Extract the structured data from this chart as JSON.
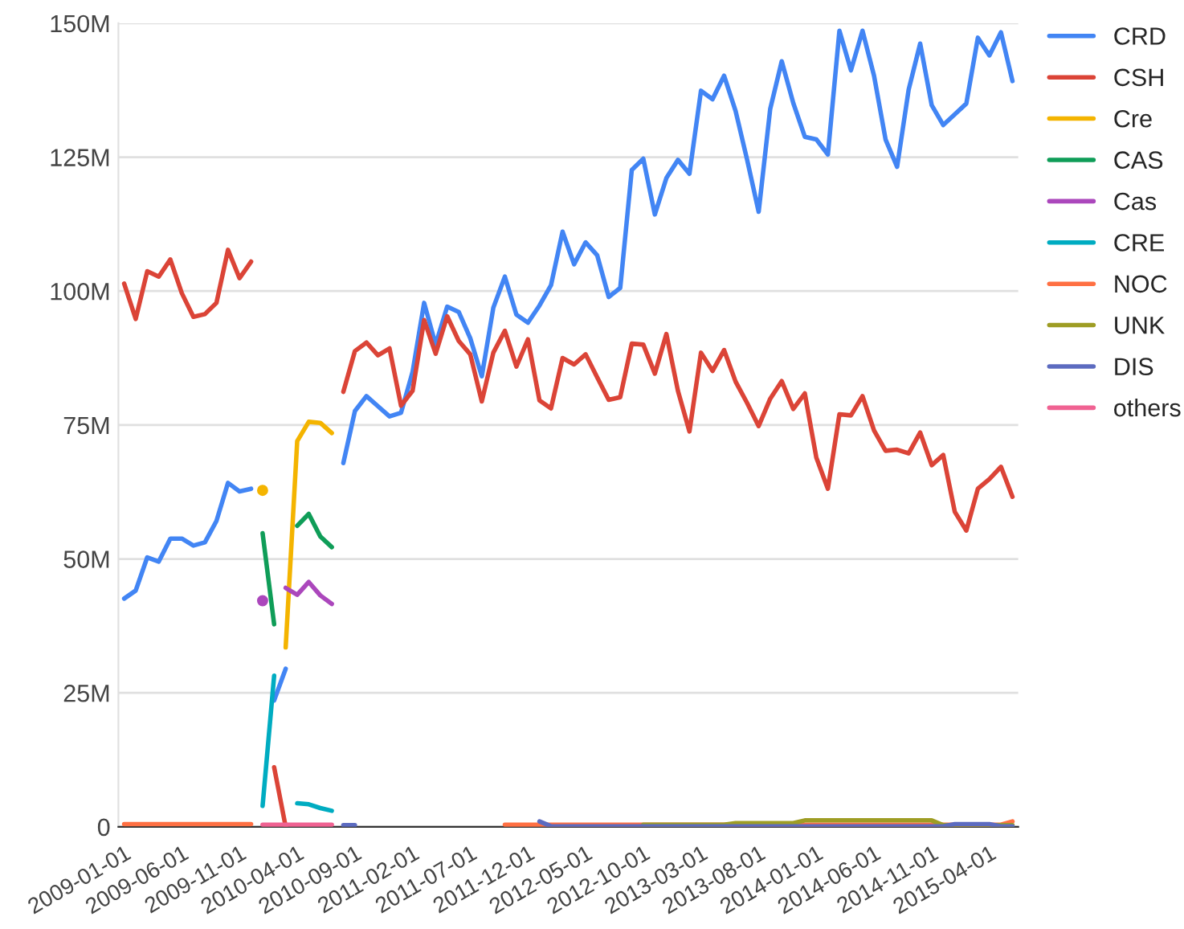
{
  "chart_data": {
    "type": "line",
    "categories": [
      "2009-01-01",
      null,
      null,
      null,
      null,
      "2009-06-01",
      null,
      null,
      null,
      null,
      "2009-11-01",
      null,
      null,
      null,
      null,
      "2010-04-01",
      null,
      null,
      null,
      null,
      "2010-09-01",
      null,
      null,
      null,
      null,
      "2011-02-01",
      null,
      null,
      null,
      null,
      "2011-07-01",
      null,
      null,
      null,
      null,
      "2011-12-01",
      null,
      null,
      null,
      null,
      "2012-05-01",
      null,
      null,
      null,
      null,
      "2012-10-01",
      null,
      null,
      null,
      null,
      "2013-03-01",
      null,
      null,
      null,
      null,
      "2013-08-01",
      null,
      null,
      null,
      null,
      "2014-01-01",
      null,
      null,
      null,
      null,
      "2014-06-01",
      null,
      null,
      null,
      null,
      "2014-11-01",
      null,
      null,
      null,
      null,
      "2015-04-01",
      null,
      null
    ],
    "series": [
      {
        "name": "CRD",
        "color": "#4285f4",
        "values": [
          42.6,
          44.1,
          50.3,
          49.5,
          53.8,
          53.8,
          52.5,
          53.1,
          57.1,
          64.2,
          62.6,
          63.1,
          null,
          23.6,
          29.5,
          null,
          null,
          null,
          null,
          67.9,
          77.6,
          80.4,
          78.5,
          76.6,
          77.3,
          84.9,
          97.8,
          90.0,
          97.1,
          96.1,
          91.2,
          84.1,
          96.9,
          102.7,
          95.6,
          94.1,
          97.3,
          101.1,
          111.1,
          105.0,
          109.1,
          106.7,
          98.9,
          100.6,
          122.6,
          124.7,
          114.3,
          121.1,
          124.5,
          121.9,
          137.4,
          135.8,
          140.2,
          133.6,
          124.5,
          114.8,
          134.0,
          142.9,
          135.1,
          128.8,
          128.3,
          125.5,
          148.6,
          141.2,
          148.6,
          140.2,
          128.3,
          123.2,
          137.6,
          146.2,
          134.7,
          131.0,
          133.0,
          135.0,
          147.3,
          144.0,
          148.3,
          139.2
        ]
      },
      {
        "name": "CSH",
        "color": "#db4437",
        "values": [
          101.4,
          94.8,
          103.7,
          102.7,
          105.9,
          99.6,
          95.2,
          95.7,
          97.8,
          107.7,
          102.4,
          105.5,
          null,
          11.1,
          0,
          null,
          null,
          null,
          null,
          81.2,
          88.8,
          90.4,
          88.0,
          89.3,
          78.6,
          81.4,
          94.6,
          88.3,
          95.3,
          90.7,
          88.2,
          79.4,
          88.5,
          92.6,
          85.9,
          91.0,
          79.6,
          78.1,
          87.5,
          86.3,
          88.2,
          83.9,
          79.7,
          80.2,
          90.2,
          90.0,
          84.6,
          92.0,
          81.4,
          73.8,
          88.5,
          85.1,
          89.0,
          83.1,
          79.1,
          74.8,
          79.9,
          83.2,
          78.0,
          80.9,
          68.9,
          63.1,
          77.0,
          76.8,
          80.4,
          74.0,
          70.2,
          70.4,
          69.7,
          73.6,
          67.5,
          69.4,
          58.8,
          55.3,
          63.1,
          64.9,
          67.2,
          61.6
        ]
      },
      {
        "name": "Cre",
        "color": "#f4b400",
        "values": [
          null,
          null,
          null,
          null,
          null,
          null,
          null,
          null,
          null,
          null,
          null,
          null,
          62.8,
          null,
          33.5,
          72.0,
          75.6,
          75.4,
          73.5,
          null,
          null,
          null,
          null,
          null,
          null,
          null,
          null,
          null,
          null,
          null,
          null,
          null,
          null,
          null,
          null,
          null,
          null,
          null,
          null,
          null,
          null,
          null,
          null,
          null,
          null,
          null,
          null,
          null,
          null,
          null,
          null,
          null,
          null,
          null,
          null,
          null,
          null,
          null,
          null,
          null,
          null,
          null,
          null,
          null,
          null,
          null,
          null,
          null,
          null,
          null,
          null,
          null,
          null,
          null,
          null,
          null,
          null,
          null
        ]
      },
      {
        "name": "CAS",
        "color": "#0f9d58",
        "values": [
          null,
          null,
          null,
          null,
          null,
          null,
          null,
          null,
          null,
          null,
          null,
          null,
          54.8,
          37.8,
          null,
          56.2,
          58.4,
          54.2,
          52.2,
          null,
          null,
          null,
          null,
          null,
          null,
          null,
          null,
          null,
          null,
          null,
          null,
          null,
          null,
          null,
          null,
          null,
          null,
          null,
          null,
          null,
          null,
          null,
          null,
          null,
          null,
          null,
          null,
          null,
          null,
          null,
          null,
          null,
          null,
          null,
          null,
          null,
          null,
          null,
          null,
          null,
          null,
          null,
          null,
          null,
          null,
          null,
          null,
          null,
          null,
          null,
          null,
          null,
          null,
          null,
          null,
          null,
          null,
          null
        ]
      },
      {
        "name": "Cas",
        "color": "#ab47bc",
        "values": [
          null,
          null,
          null,
          null,
          null,
          null,
          null,
          null,
          null,
          null,
          null,
          null,
          42.2,
          null,
          44.6,
          43.3,
          45.7,
          43.2,
          41.6,
          null,
          null,
          null,
          null,
          null,
          null,
          null,
          null,
          null,
          null,
          null,
          null,
          null,
          null,
          null,
          null,
          null,
          null,
          null,
          null,
          null,
          null,
          null,
          null,
          null,
          null,
          null,
          null,
          null,
          null,
          null,
          null,
          null,
          null,
          null,
          null,
          null,
          null,
          null,
          null,
          null,
          null,
          null,
          null,
          null,
          null,
          null,
          null,
          null,
          null,
          null,
          null,
          null,
          null,
          null,
          null,
          null,
          null,
          null
        ]
      },
      {
        "name": "CRE",
        "color": "#00acc1",
        "values": [
          null,
          null,
          null,
          null,
          null,
          null,
          null,
          null,
          null,
          null,
          null,
          null,
          3.9,
          28.2,
          null,
          4.4,
          4.2,
          3.5,
          3.0,
          null,
          null,
          null,
          null,
          null,
          null,
          null,
          null,
          null,
          null,
          null,
          null,
          null,
          null,
          null,
          null,
          null,
          null,
          null,
          null,
          null,
          null,
          null,
          null,
          null,
          null,
          null,
          null,
          null,
          null,
          null,
          null,
          null,
          null,
          null,
          null,
          null,
          null,
          null,
          null,
          null,
          null,
          null,
          null,
          null,
          null,
          null,
          null,
          null,
          null,
          null,
          null,
          null,
          null,
          null,
          null,
          null,
          null,
          null
        ]
      },
      {
        "name": "NOC",
        "color": "#ff7043",
        "values": [
          0.5,
          0.5,
          0.5,
          0.5,
          0.5,
          0.5,
          0.5,
          0.5,
          0.5,
          0.5,
          0.5,
          0.5,
          null,
          null,
          null,
          null,
          null,
          null,
          null,
          null,
          null,
          null,
          null,
          null,
          null,
          null,
          null,
          null,
          null,
          null,
          null,
          null,
          null,
          0.4,
          0.4,
          0.4,
          0.4,
          0.4,
          0.4,
          0.4,
          0.4,
          0.4,
          0.4,
          0.4,
          0.4,
          0.4,
          0.4,
          0.4,
          0.4,
          0.4,
          0.4,
          0.4,
          0.4,
          0.4,
          0.4,
          0.4,
          0.4,
          0.4,
          0.4,
          0.4,
          0.4,
          0.4,
          0.4,
          0.4,
          0.4,
          0.4,
          0.4,
          0.4,
          0.4,
          0.4,
          0.4,
          0.4,
          0.4,
          0.4,
          0.4,
          0.4,
          0.4,
          1.0
        ]
      },
      {
        "name": "UNK",
        "color": "#9e9d24",
        "values": [
          null,
          null,
          null,
          null,
          null,
          null,
          null,
          null,
          null,
          null,
          null,
          null,
          null,
          null,
          null,
          null,
          null,
          null,
          null,
          null,
          null,
          null,
          null,
          null,
          null,
          null,
          null,
          null,
          null,
          null,
          null,
          null,
          null,
          null,
          null,
          null,
          null,
          null,
          null,
          null,
          null,
          null,
          null,
          null,
          null,
          0.4,
          0.4,
          0.4,
          0.4,
          0.4,
          0.4,
          0.4,
          0.4,
          0.7,
          0.7,
          0.7,
          0.7,
          0.7,
          0.7,
          1.2,
          1.2,
          1.2,
          1.2,
          1.2,
          1.2,
          1.2,
          1.2,
          1.2,
          1.2,
          1.2,
          1.2,
          0.3,
          0.3,
          0.3,
          0.3,
          0.3,
          0.3,
          0.3
        ]
      },
      {
        "name": "DIS",
        "color": "#5c6bc0",
        "values": [
          null,
          null,
          null,
          null,
          null,
          null,
          null,
          null,
          null,
          null,
          null,
          null,
          null,
          null,
          null,
          null,
          null,
          null,
          null,
          0.3,
          0.3,
          null,
          null,
          null,
          null,
          null,
          null,
          null,
          null,
          null,
          null,
          null,
          null,
          null,
          null,
          null,
          1.0,
          0.1,
          0.1,
          0.1,
          0.1,
          0.1,
          0.1,
          0.1,
          0.1,
          0.1,
          0.1,
          0.1,
          0.1,
          0.1,
          0.1,
          0.1,
          0.1,
          0.1,
          0.1,
          0.1,
          0.1,
          0.1,
          0.1,
          0.1,
          0.1,
          0.1,
          0.1,
          0.1,
          0.1,
          0.1,
          0.1,
          0.1,
          0.1,
          0.1,
          0.1,
          0.1,
          0.5,
          0.5,
          0.5,
          0.5,
          0.1,
          0.1
        ]
      },
      {
        "name": "others",
        "color": "#f06292",
        "values": [
          null,
          null,
          null,
          null,
          null,
          null,
          null,
          null,
          null,
          null,
          null,
          null,
          0.4,
          0.4,
          0.4,
          0.4,
          0.4,
          0.4,
          0.4,
          null,
          null,
          null,
          null,
          null,
          null,
          null,
          null,
          null,
          null,
          null,
          null,
          null,
          null,
          null,
          null,
          null,
          null,
          null,
          null,
          null,
          null,
          null,
          null,
          null,
          null,
          null,
          null,
          null,
          null,
          null,
          null,
          null,
          null,
          null,
          null,
          null,
          null,
          null,
          null,
          null,
          null,
          null,
          null,
          null,
          null,
          null,
          null,
          null,
          null,
          null,
          null,
          null,
          null,
          null,
          null,
          null,
          null,
          null
        ]
      }
    ],
    "ylim": [
      0,
      150
    ],
    "yticks": [
      {
        "value": 0,
        "label": "0"
      },
      {
        "value": 25,
        "label": "25M"
      },
      {
        "value": 50,
        "label": "50M"
      },
      {
        "value": 75,
        "label": "75M"
      },
      {
        "value": 100,
        "label": "100M"
      },
      {
        "value": 125,
        "label": "125M"
      },
      {
        "value": 150,
        "label": "150M"
      }
    ],
    "grid": "y",
    "legend": "right",
    "marker": "none",
    "line_style": "solid"
  }
}
